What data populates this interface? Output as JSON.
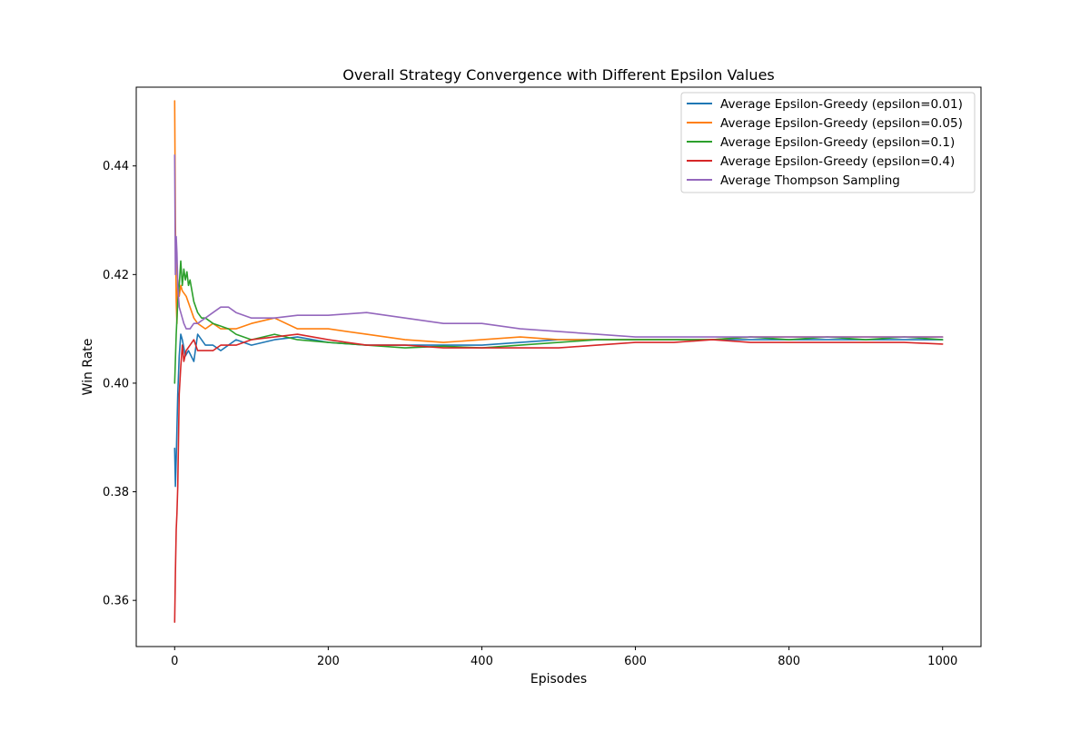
{
  "chart_data": {
    "type": "line",
    "title": "Overall Strategy Convergence with Different Epsilon Values",
    "xlabel": "Episodes",
    "ylabel": "Win Rate",
    "xlim": [
      -50,
      1050
    ],
    "ylim": [
      0.3515,
      0.4545
    ],
    "xticks": [
      0,
      200,
      400,
      600,
      800,
      1000
    ],
    "yticks": [
      0.36,
      0.38,
      0.4,
      0.42,
      0.44
    ],
    "xtick_labels": [
      "0",
      "200",
      "400",
      "600",
      "800",
      "1000"
    ],
    "ytick_labels": [
      "0.36",
      "0.38",
      "0.40",
      "0.42",
      "0.44"
    ],
    "grid": false,
    "legend_position": "top-right",
    "series": [
      {
        "name": "Average Epsilon-Greedy (epsilon=0.01)",
        "color": "#1f77b4",
        "x": [
          0,
          1,
          2,
          4,
          6,
          8,
          10,
          14,
          18,
          25,
          30,
          40,
          50,
          60,
          80,
          100,
          130,
          160,
          200,
          250,
          300,
          350,
          400,
          450,
          500,
          550,
          600,
          650,
          700,
          750,
          800,
          850,
          900,
          950,
          1000
        ],
        "y": [
          0.388,
          0.381,
          0.386,
          0.398,
          0.405,
          0.409,
          0.408,
          0.405,
          0.406,
          0.404,
          0.409,
          0.407,
          0.407,
          0.406,
          0.408,
          0.407,
          0.408,
          0.4085,
          0.4075,
          0.407,
          0.407,
          0.407,
          0.407,
          0.4075,
          0.408,
          0.408,
          0.408,
          0.408,
          0.408,
          0.408,
          0.408,
          0.408,
          0.408,
          0.408,
          0.408
        ]
      },
      {
        "name": "Average Epsilon-Greedy (epsilon=0.05)",
        "color": "#ff7f0e",
        "x": [
          0,
          1,
          2,
          3,
          4,
          6,
          8,
          10,
          15,
          20,
          25,
          30,
          40,
          50,
          60,
          80,
          100,
          130,
          160,
          200,
          250,
          300,
          350,
          400,
          450,
          500,
          550,
          600,
          650,
          700,
          750,
          800,
          850,
          900,
          950,
          1000
        ],
        "y": [
          0.452,
          0.43,
          0.415,
          0.411,
          0.419,
          0.416,
          0.418,
          0.417,
          0.416,
          0.414,
          0.412,
          0.411,
          0.41,
          0.411,
          0.41,
          0.41,
          0.411,
          0.412,
          0.41,
          0.41,
          0.409,
          0.408,
          0.4075,
          0.408,
          0.4085,
          0.408,
          0.408,
          0.408,
          0.408,
          0.408,
          0.4085,
          0.4085,
          0.4085,
          0.4085,
          0.4085,
          0.4085
        ]
      },
      {
        "name": "Average Epsilon-Greedy (epsilon=0.1)",
        "color": "#2ca02c",
        "x": [
          0,
          2,
          4,
          6,
          8,
          10,
          12,
          14,
          16,
          18,
          20,
          25,
          30,
          35,
          40,
          50,
          60,
          70,
          80,
          100,
          130,
          160,
          200,
          250,
          300,
          350,
          400,
          450,
          500,
          550,
          600,
          650,
          700,
          750,
          800,
          850,
          900,
          950,
          1000
        ],
        "y": [
          0.4,
          0.409,
          0.415,
          0.418,
          0.4225,
          0.418,
          0.421,
          0.419,
          0.4205,
          0.418,
          0.419,
          0.415,
          0.413,
          0.412,
          0.412,
          0.411,
          0.4105,
          0.41,
          0.409,
          0.408,
          0.409,
          0.408,
          0.4075,
          0.407,
          0.4065,
          0.4068,
          0.4065,
          0.407,
          0.4075,
          0.408,
          0.408,
          0.408,
          0.408,
          0.4085,
          0.408,
          0.4085,
          0.408,
          0.4085,
          0.408
        ]
      },
      {
        "name": "Average Epsilon-Greedy (epsilon=0.4)",
        "color": "#d62728",
        "x": [
          0,
          1,
          2,
          3,
          4,
          6,
          8,
          10,
          12,
          15,
          20,
          25,
          30,
          40,
          50,
          60,
          70,
          80,
          100,
          130,
          160,
          200,
          250,
          300,
          350,
          400,
          450,
          500,
          550,
          600,
          650,
          700,
          750,
          800,
          850,
          900,
          950,
          1000
        ],
        "y": [
          0.356,
          0.365,
          0.373,
          0.376,
          0.381,
          0.398,
          0.403,
          0.407,
          0.404,
          0.406,
          0.407,
          0.408,
          0.406,
          0.406,
          0.406,
          0.407,
          0.407,
          0.407,
          0.408,
          0.4085,
          0.409,
          0.408,
          0.407,
          0.407,
          0.4065,
          0.4065,
          0.4065,
          0.4065,
          0.407,
          0.4075,
          0.4075,
          0.408,
          0.4075,
          0.4075,
          0.4075,
          0.4075,
          0.4075,
          0.4072
        ]
      },
      {
        "name": "Average Thompson Sampling",
        "color": "#9467bd",
        "x": [
          0,
          1,
          2,
          3,
          4,
          6,
          8,
          10,
          12,
          15,
          20,
          25,
          30,
          40,
          50,
          60,
          70,
          80,
          100,
          130,
          160,
          200,
          250,
          300,
          350,
          400,
          450,
          500,
          550,
          600,
          650,
          700,
          750,
          800,
          850,
          900,
          950,
          1000
        ],
        "y": [
          0.442,
          0.42,
          0.427,
          0.424,
          0.418,
          0.414,
          0.413,
          0.412,
          0.411,
          0.41,
          0.41,
          0.411,
          0.411,
          0.412,
          0.413,
          0.414,
          0.414,
          0.413,
          0.412,
          0.412,
          0.4125,
          0.4125,
          0.413,
          0.412,
          0.411,
          0.411,
          0.41,
          0.4095,
          0.409,
          0.4085,
          0.4085,
          0.4085,
          0.4085,
          0.4085,
          0.4085,
          0.4085,
          0.4085,
          0.4085
        ]
      }
    ]
  }
}
